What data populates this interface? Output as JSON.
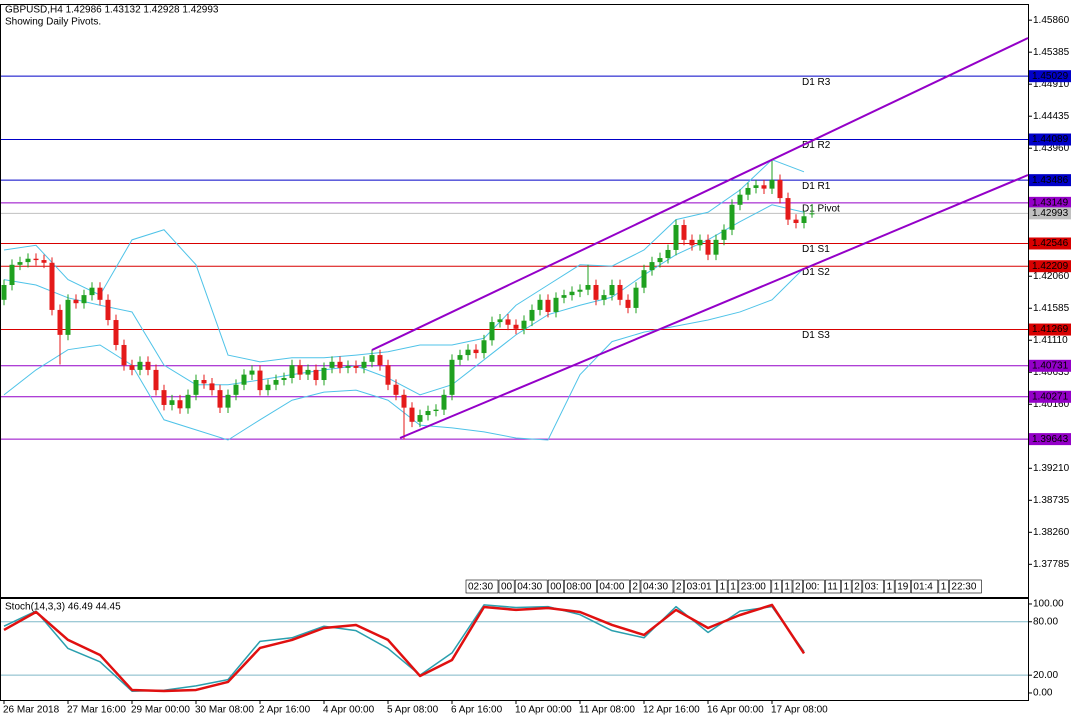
{
  "chart_data": {
    "type": "candlestick",
    "title": "GBPUSD,H4  1.42986 1.43132 1.42928 1.42993",
    "subtitle": "Showing Daily Pivots.",
    "categories": [
      "26 Mar 2018",
      null,
      null,
      null,
      null,
      null,
      null,
      null,
      "27 Mar 16:00",
      null,
      null,
      null,
      null,
      null,
      null,
      null,
      "29 Mar 00:00",
      null,
      null,
      null,
      null,
      null,
      null,
      null,
      "30 Mar 08:00",
      null,
      null,
      null,
      null,
      null,
      null,
      null,
      "2 Apr 16:00",
      null,
      null,
      null,
      null,
      null,
      null,
      null,
      "4 Apr 00:00",
      null,
      null,
      null,
      null,
      null,
      null,
      null,
      "5 Apr 08:00",
      null,
      null,
      null,
      null,
      null,
      null,
      null,
      "6 Apr 16:00",
      null,
      null,
      null,
      null,
      null,
      null,
      null,
      "10 Apr 00:00",
      null,
      null,
      null,
      null,
      null,
      null,
      null,
      "11 Apr 08:00",
      null,
      null,
      null,
      null,
      null,
      null,
      null,
      "12 Apr 16:00",
      null,
      null,
      null,
      null,
      null,
      null,
      null,
      "16 Apr 00:00",
      null,
      null,
      null,
      null,
      null,
      null,
      null,
      "17 Apr 08:00",
      null,
      null,
      null,
      null,
      null
    ],
    "open": [
      1.4171,
      1.4193,
      1.4223,
      1.4227,
      1.4232,
      1.423,
      1.4226,
      1.4156,
      1.4119,
      1.4171,
      1.4166,
      1.4178,
      1.4189,
      1.4171,
      1.4141,
      1.4104,
      1.4074,
      1.4067,
      1.4079,
      1.4067,
      1.4037,
      1.4015,
      1.4022,
      1.401,
      1.403,
      1.4052,
      1.4047,
      1.4037,
      1.4011,
      1.403,
      1.4045,
      1.406,
      1.4066,
      1.4037,
      1.4045,
      1.4052,
      1.4055,
      1.4074,
      1.406,
      1.4067,
      1.4052,
      1.407,
      1.4079,
      1.407,
      1.4073,
      1.407,
      1.4079,
      1.4089,
      1.4074,
      1.4045,
      1.403,
      1.4011,
      1.399,
      1.4,
      1.4006,
      1.4008,
      1.403,
      1.4082,
      1.4089,
      1.4097,
      1.4092,
      1.4111,
      1.4138,
      1.4142,
      1.4134,
      1.4128,
      1.414,
      1.4156,
      1.4171,
      1.4153,
      1.4174,
      1.4178,
      1.4183,
      1.4186,
      1.4193,
      1.4171,
      1.4178,
      1.4193,
      1.4171,
      1.4159,
      1.4189,
      1.4215,
      1.4227,
      1.4233,
      1.4245,
      1.4282,
      1.426,
      1.4252,
      1.426,
      1.4238,
      1.426,
      1.4275,
      1.4312,
      1.4327,
      1.4337,
      1.4341,
      1.4336,
      1.4349,
      1.4322,
      1.429,
      1.4285,
      1.42986
    ],
    "high": [
      1.4201,
      1.4231,
      1.4235,
      1.424,
      1.424,
      1.4238,
      1.4234,
      1.4164,
      1.4179,
      1.4179,
      1.4186,
      1.4197,
      1.4197,
      1.4179,
      1.4149,
      1.4112,
      1.4082,
      1.4087,
      1.4087,
      1.4075,
      1.4045,
      1.403,
      1.403,
      1.4038,
      1.406,
      1.406,
      1.4055,
      1.4045,
      1.4038,
      1.4053,
      1.4068,
      1.4074,
      1.4074,
      1.4053,
      1.406,
      1.4063,
      1.4082,
      1.4082,
      1.4075,
      1.4075,
      1.4078,
      1.4087,
      1.4087,
      1.4081,
      1.4081,
      1.4087,
      1.4097,
      1.4097,
      1.4082,
      1.4053,
      1.4038,
      1.4019,
      1.4008,
      1.4014,
      1.4016,
      1.4038,
      1.409,
      1.4097,
      1.4105,
      1.4105,
      1.4119,
      1.4146,
      1.415,
      1.415,
      1.4142,
      1.4148,
      1.4164,
      1.4179,
      1.4179,
      1.4182,
      1.4186,
      1.4191,
      1.4194,
      1.4223,
      1.4201,
      1.4186,
      1.4201,
      1.4201,
      1.4179,
      1.4197,
      1.4223,
      1.4235,
      1.4241,
      1.4253,
      1.429,
      1.429,
      1.4268,
      1.4268,
      1.4268,
      1.4268,
      1.4283,
      1.432,
      1.4335,
      1.4345,
      1.4349,
      1.4349,
      1.4379,
      1.4357,
      1.433,
      1.4298,
      1.4303,
      1.43132
    ],
    "low": [
      1.4163,
      1.4185,
      1.4215,
      1.4219,
      1.4222,
      1.4218,
      1.4148,
      1.4075,
      1.4111,
      1.4158,
      1.4158,
      1.417,
      1.4163,
      1.4133,
      1.4096,
      1.4066,
      1.4059,
      1.4059,
      1.4059,
      1.4029,
      1.4007,
      1.4007,
      1.4002,
      1.4002,
      1.4022,
      1.4039,
      1.4029,
      1.4003,
      1.4003,
      1.4022,
      1.4037,
      1.4052,
      1.4029,
      1.4029,
      1.4037,
      1.4044,
      1.4047,
      1.4052,
      1.4052,
      1.4044,
      1.4044,
      1.4062,
      1.4062,
      1.4062,
      1.4062,
      1.4062,
      1.4071,
      1.4066,
      1.4037,
      1.4022,
      1.3964,
      1.3982,
      1.3982,
      1.3992,
      1.3998,
      1.4,
      1.4022,
      1.4074,
      1.4081,
      1.4084,
      1.4084,
      1.4103,
      1.413,
      1.4126,
      1.412,
      1.412,
      1.4132,
      1.4148,
      1.4145,
      1.4145,
      1.4166,
      1.417,
      1.4175,
      1.4178,
      1.4163,
      1.4163,
      1.417,
      1.4163,
      1.4151,
      1.4151,
      1.4181,
      1.4207,
      1.4219,
      1.4225,
      1.4237,
      1.4252,
      1.4244,
      1.4244,
      1.423,
      1.423,
      1.4252,
      1.4267,
      1.4304,
      1.4319,
      1.4329,
      1.4328,
      1.4328,
      1.4314,
      1.4282,
      1.4277,
      1.4277,
      1.42928
    ],
    "close": [
      1.4193,
      1.4223,
      1.4227,
      1.4232,
      1.423,
      1.4226,
      1.4156,
      1.4119,
      1.4171,
      1.4166,
      1.4178,
      1.4189,
      1.4171,
      1.4141,
      1.4104,
      1.4074,
      1.4067,
      1.4079,
      1.4067,
      1.4037,
      1.4015,
      1.4022,
      1.401,
      1.403,
      1.4052,
      1.4047,
      1.4037,
      1.4011,
      1.403,
      1.4045,
      1.406,
      1.4066,
      1.4037,
      1.4045,
      1.4052,
      1.4055,
      1.4074,
      1.406,
      1.4067,
      1.4052,
      1.407,
      1.4079,
      1.407,
      1.4073,
      1.407,
      1.4079,
      1.4089,
      1.4074,
      1.4045,
      1.403,
      1.4011,
      1.399,
      1.4,
      1.4006,
      1.4008,
      1.403,
      1.4082,
      1.4089,
      1.4097,
      1.4092,
      1.4111,
      1.4138,
      1.4142,
      1.4134,
      1.4128,
      1.414,
      1.4156,
      1.4171,
      1.4153,
      1.4174,
      1.4178,
      1.4183,
      1.4186,
      1.4193,
      1.4171,
      1.4178,
      1.4193,
      1.4171,
      1.4159,
      1.4189,
      1.4215,
      1.4227,
      1.4233,
      1.4245,
      1.4282,
      1.426,
      1.4252,
      1.426,
      1.4238,
      1.426,
      1.4275,
      1.4312,
      1.4327,
      1.4337,
      1.4341,
      1.4336,
      1.4349,
      1.4322,
      1.429,
      1.4285,
      1.4295,
      1.42993
    ],
    "up_color": "#1fa01f",
    "down_color": "#e41a1a",
    "ylim": [
      1.373,
      1.461
    ],
    "yticks": [
      {
        "value": 1.4586,
        "label": "1.45860"
      },
      1.45385,
      {
        "value": 1.4491,
        "label": "1.44910"
      },
      1.44435,
      {
        "value": 1.4396,
        "label": "1.43960"
      },
      {
        "value": 1.4206,
        "label": "1.42060"
      },
      1.41585,
      {
        "value": 1.4111,
        "label": "1.41110"
      },
      1.40635,
      {
        "value": 1.4016,
        "label": "1.40160"
      },
      {
        "value": 1.3921,
        "label": "1.39210"
      },
      1.38735,
      {
        "value": 1.3826,
        "label": "1.38260"
      },
      1.37785
    ],
    "current_color": "#c0c0c0",
    "levels": [
      {
        "name": "D1 R3",
        "value": 1.45029,
        "color": "#0000c8"
      },
      {
        "name": "D1 R2",
        "value": 1.44089,
        "color": "#0000c8"
      },
      {
        "name": "D1 R1",
        "value": 1.43486,
        "color": "#0000c8"
      },
      {
        "name": "D1 Pivot",
        "value": 1.43149,
        "color": "#9400c8"
      },
      {
        "name": "D1 S1",
        "value": 1.42546,
        "color": "#d80000"
      },
      {
        "name": "D1 S2",
        "value": 1.42209,
        "color": "#d80000"
      },
      {
        "name": "D1 S3",
        "value": 1.41269,
        "color": "#d80000"
      },
      {
        "value": 1.40731,
        "color": "#9400c8"
      },
      {
        "value": 1.40271,
        "color": "#9400c8"
      },
      {
        "value": 1.39643,
        "color": "#9400c8"
      }
    ],
    "bands": {
      "color": "#4fc3e8",
      "x": [
        0,
        4,
        8,
        12,
        16,
        20,
        24,
        28,
        32,
        36,
        40,
        44,
        48,
        52,
        56,
        60,
        64,
        68,
        72,
        76,
        80,
        84,
        88,
        92,
        96,
        100
      ],
      "series": [
        {
          "values": [
            1.4245,
            1.4252,
            1.4201,
            1.4178,
            1.426,
            1.4275,
            1.4223,
            1.4089,
            1.4079,
            1.4085,
            1.4085,
            1.4089,
            1.4094,
            1.4104,
            1.4104,
            1.4114,
            1.4163,
            1.4193,
            1.4223,
            1.4221,
            1.4245,
            1.429,
            1.4301,
            1.4334,
            1.4379,
            1.4361
          ]
        },
        {
          "values": [
            1.4201,
            1.4193,
            1.4174,
            1.4163,
            1.4153,
            1.4074,
            1.4045,
            1.4045,
            1.4052,
            1.406,
            1.4067,
            1.4073,
            1.4055,
            1.403,
            1.4045,
            1.4082,
            1.4119,
            1.4149,
            1.4163,
            1.4175,
            1.4208,
            1.4238,
            1.426,
            1.4287,
            1.4312,
            1.4301
          ]
        },
        {
          "values": [
            1.403,
            1.4067,
            1.4097,
            1.4104,
            1.4074,
            1.3993,
            1.3978,
            1.3963,
            1.3993,
            1.4022,
            1.4034,
            1.4037,
            1.4022,
            1.3985,
            1.3981,
            1.3975,
            1.3966,
            1.3963,
            1.406,
            1.4109,
            1.4123,
            1.4132,
            1.4141,
            1.4153,
            1.4171,
            1.4218
          ]
        }
      ]
    },
    "time_labels": [
      "02:30",
      "00",
      "04:30",
      "00",
      "08:00",
      "04:00",
      "2",
      "04:30",
      "2",
      "03:01",
      "1",
      "1",
      "23:00",
      "1",
      "1",
      "2",
      "00:",
      "11",
      "1",
      "2",
      "03:",
      "1",
      "19",
      "01:4",
      "1",
      "22:30"
    ],
    "indicator": {
      "title": "Stoch(14,3,3) 46.49 44.45",
      "ylim": [
        -7.9,
        106.7
      ],
      "yticks": [
        {
          "value": 100,
          "label": "100.00"
        },
        {
          "value": 80,
          "label": "80.00"
        },
        {
          "value": 20,
          "label": "20.00"
        },
        {
          "value": 0,
          "label": "0.00"
        }
      ],
      "levels": [
        80,
        20
      ],
      "level_color": "#7fb8c8",
      "x": [
        0,
        4,
        8,
        12,
        16,
        20,
        24,
        28,
        32,
        36,
        40,
        44,
        48,
        52,
        56,
        60,
        64,
        68,
        72,
        76,
        80,
        84,
        88,
        92,
        96,
        100
      ],
      "series": [
        {
          "color": "#2a9fae",
          "values": [
            75,
            92,
            50,
            35,
            2,
            3,
            8,
            15,
            58,
            62,
            75,
            70,
            50,
            20,
            45,
            99,
            96,
            97,
            88,
            70,
            62,
            97,
            68,
            92,
            97,
            46.49
          ]
        },
        {
          "color": "#e01010",
          "values": [
            70.8,
            91,
            59.6,
            42.7,
            3.4,
            2.2,
            3.4,
            12.4,
            50.6,
            59.6,
            73,
            76.4,
            59.6,
            19.1,
            37.1,
            96.6,
            93.3,
            95.5,
            91,
            76.4,
            65.2,
            93.3,
            73,
            87.6,
            98.9,
            44.45
          ]
        }
      ]
    }
  }
}
